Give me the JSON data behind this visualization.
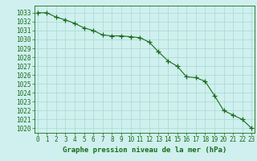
{
  "x": [
    0,
    1,
    2,
    3,
    4,
    5,
    6,
    7,
    8,
    9,
    10,
    11,
    12,
    13,
    14,
    15,
    16,
    17,
    18,
    19,
    20,
    21,
    22,
    23
  ],
  "y": [
    1033,
    1033,
    1032.5,
    1032.2,
    1031.8,
    1031.3,
    1031.0,
    1030.5,
    1030.4,
    1030.4,
    1030.3,
    1030.2,
    1029.7,
    1028.6,
    1027.6,
    1027.0,
    1025.8,
    1025.7,
    1025.3,
    1023.7,
    1022.0,
    1021.5,
    1021.0,
    1020.0
  ],
  "line_color": "#1a6b1a",
  "marker": "+",
  "marker_size": 4,
  "linewidth": 0.8,
  "bg_color": "#cff0ee",
  "grid_color": "#a8d8d4",
  "axes_color": "#1a6b1a",
  "xlabel": "Graphe pression niveau de la mer (hPa)",
  "xlabel_fontsize": 6.5,
  "tick_fontsize": 5.5,
  "ylim": [
    1019.5,
    1033.8
  ],
  "yticks": [
    1020,
    1021,
    1022,
    1023,
    1024,
    1025,
    1026,
    1027,
    1028,
    1029,
    1030,
    1031,
    1032,
    1033
  ],
  "xticks": [
    0,
    1,
    2,
    3,
    4,
    5,
    6,
    7,
    8,
    9,
    10,
    11,
    12,
    13,
    14,
    15,
    16,
    17,
    18,
    19,
    20,
    21,
    22,
    23
  ],
  "xlim": [
    -0.3,
    23.3
  ]
}
